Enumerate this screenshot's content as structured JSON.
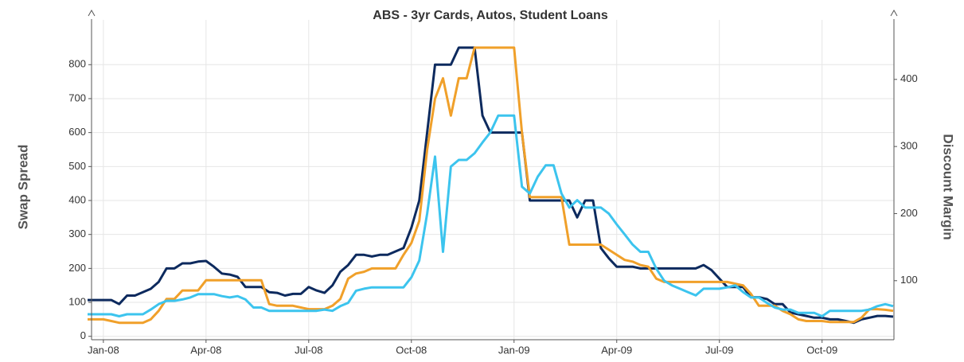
{
  "chart_data": {
    "type": "line",
    "title": "ABS - 3yr Cards, Autos, Student Loans",
    "y_label": "Swap Spread",
    "y2_label": "Discount Margin",
    "categories": [
      null,
      null,
      "Jan-08",
      null,
      null,
      null,
      null,
      null,
      null,
      null,
      null,
      null,
      null,
      null,
      null,
      "Apr-08",
      null,
      null,
      null,
      null,
      null,
      null,
      null,
      null,
      null,
      null,
      null,
      null,
      "Jul-08",
      null,
      null,
      null,
      null,
      null,
      null,
      null,
      null,
      null,
      null,
      null,
      null,
      "Oct-08",
      null,
      null,
      null,
      null,
      null,
      null,
      null,
      null,
      null,
      null,
      null,
      null,
      "Jan-09",
      null,
      null,
      null,
      null,
      null,
      null,
      null,
      null,
      null,
      null,
      null,
      null,
      "Apr-09",
      null,
      null,
      null,
      null,
      null,
      null,
      null,
      null,
      null,
      null,
      null,
      null,
      "Jul-09",
      null,
      null,
      null,
      null,
      null,
      null,
      null,
      null,
      null,
      null,
      null,
      null,
      "Oct-09",
      null,
      null,
      null,
      null,
      null,
      null,
      null,
      null,
      null
    ],
    "series": [
      {
        "color": "#0d2a5e",
        "values": [
          107,
          107,
          107,
          107,
          95,
          120,
          120,
          130,
          140,
          160,
          200,
          200,
          215,
          215,
          220,
          222,
          205,
          185,
          182,
          175,
          145,
          145,
          145,
          130,
          128,
          120,
          125,
          125,
          145,
          135,
          128,
          150,
          190,
          210,
          240,
          240,
          235,
          240,
          240,
          250,
          260,
          320,
          400,
          600,
          800,
          800,
          800,
          850,
          850,
          850,
          650,
          600,
          600,
          600,
          600,
          600,
          400,
          400,
          400,
          400,
          400,
          400,
          350,
          400,
          400,
          260,
          230,
          205,
          205,
          205,
          200,
          200,
          200,
          200,
          200,
          200,
          200,
          200,
          210,
          195,
          170,
          145,
          145,
          145,
          115,
          115,
          110,
          95,
          95,
          70,
          65,
          60,
          55,
          55,
          50,
          50,
          45,
          40,
          50,
          55,
          60,
          60,
          58
        ]
      },
      {
        "color": "#f0a02a",
        "values": [
          50,
          50,
          50,
          45,
          40,
          40,
          40,
          40,
          50,
          75,
          110,
          110,
          135,
          135,
          135,
          165,
          165,
          165,
          165,
          165,
          165,
          165,
          165,
          95,
          90,
          90,
          90,
          85,
          80,
          80,
          80,
          90,
          110,
          170,
          185,
          190,
          200,
          200,
          200,
          200,
          240,
          275,
          340,
          550,
          700,
          760,
          650,
          760,
          760,
          850,
          850,
          850,
          850,
          850,
          850,
          600,
          410,
          410,
          410,
          410,
          410,
          270,
          270,
          270,
          270,
          270,
          255,
          240,
          225,
          220,
          210,
          205,
          170,
          160,
          160,
          160,
          160,
          160,
          160,
          160,
          160,
          160,
          155,
          150,
          125,
          90,
          90,
          90,
          75,
          65,
          50,
          45,
          45,
          45,
          42,
          42,
          42,
          42,
          55,
          80,
          80,
          78,
          75
        ]
      },
      {
        "color": "#3cc4ee",
        "axis": "y2",
        "values": [
          50,
          50,
          50,
          50,
          47,
          50,
          50,
          50,
          57,
          65,
          70,
          70,
          72,
          75,
          80,
          80,
          80,
          77,
          75,
          77,
          72,
          60,
          60,
          55,
          55,
          55,
          55,
          55,
          55,
          55,
          57,
          55,
          62,
          67,
          85,
          88,
          90,
          90,
          90,
          90,
          90,
          105,
          130,
          200,
          285,
          143,
          270,
          280,
          280,
          290,
          306,
          321,
          346,
          346,
          346,
          240,
          230,
          255,
          272,
          272,
          230,
          209,
          220,
          209,
          209,
          209,
          200,
          184,
          169,
          154,
          143,
          143,
          118,
          100,
          93,
          88,
          83,
          78,
          88,
          88,
          88,
          90,
          93,
          83,
          75,
          75,
          67,
          60,
          57,
          57,
          52,
          52,
          52,
          47,
          55,
          55,
          55,
          55,
          55,
          57,
          62,
          65,
          62
        ]
      }
    ],
    "ylim": [
      -10,
      885
    ],
    "yticks": [
      0,
      100,
      200,
      300,
      400,
      500,
      600,
      700,
      800
    ],
    "y2lim": [
      12,
      465
    ],
    "y2ticks": [
      100,
      200,
      300,
      400
    ],
    "grid": true
  }
}
